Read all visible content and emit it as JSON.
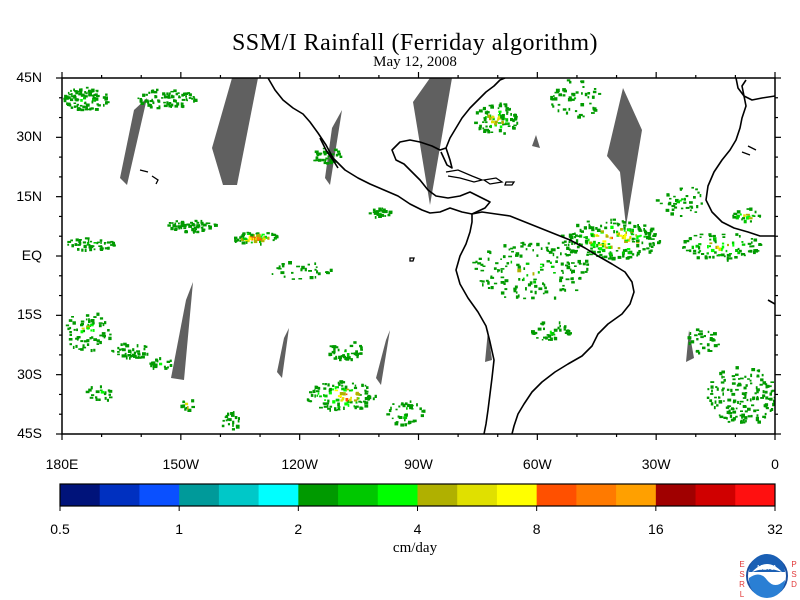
{
  "title": "SSM/I Rainfall (Ferriday algorithm)",
  "subtitle": "May 12, 2008",
  "lat_labels": [
    {
      "text": "45N",
      "lat": 45
    },
    {
      "text": "30N",
      "lat": 30
    },
    {
      "text": "15N",
      "lat": 15
    },
    {
      "text": "EQ",
      "lat": 0
    },
    {
      "text": "15S",
      "lat": -15
    },
    {
      "text": "30S",
      "lat": -30
    },
    {
      "text": "45S",
      "lat": -45
    }
  ],
  "lon_labels": [
    {
      "text": "180E",
      "lon": -180
    },
    {
      "text": "150W",
      "lon": -150
    },
    {
      "text": "120W",
      "lon": -120
    },
    {
      "text": "90W",
      "lon": -90
    },
    {
      "text": "60W",
      "lon": -60
    },
    {
      "text": "30W",
      "lon": -30
    },
    {
      "text": "0",
      "lon": 0
    }
  ],
  "colorbar": {
    "units": "cm/day",
    "ticks": [
      "0.5",
      "1",
      "2",
      "4",
      "8",
      "16",
      "32"
    ],
    "colors": [
      "#00137a",
      "#0030c0",
      "#0a50ff",
      "#009a9a",
      "#00c8c8",
      "#00ffff",
      "#009a00",
      "#00c800",
      "#00ff00",
      "#b0b000",
      "#e0e000",
      "#ffff00",
      "#ff5000",
      "#ff7a00",
      "#ffa000",
      "#a00000",
      "#d00000",
      "#ff1010"
    ]
  },
  "logo": {
    "left_text": "ESRL",
    "right_text": "PSD",
    "center_text": "NOAA"
  }
}
